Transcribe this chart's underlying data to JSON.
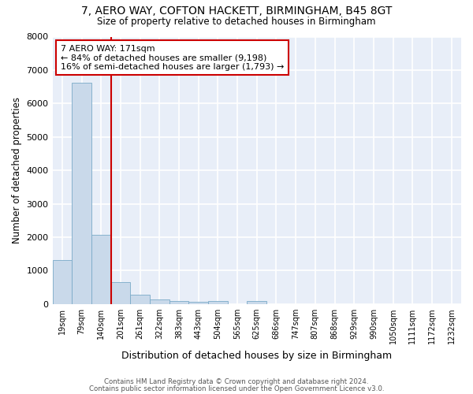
{
  "title_line1": "7, AERO WAY, COFTON HACKETT, BIRMINGHAM, B45 8GT",
  "title_line2": "Size of property relative to detached houses in Birmingham",
  "xlabel": "Distribution of detached houses by size in Birmingham",
  "ylabel": "Number of detached properties",
  "bar_labels": [
    "19sqm",
    "79sqm",
    "140sqm",
    "201sqm",
    "261sqm",
    "322sqm",
    "383sqm",
    "443sqm",
    "504sqm",
    "565sqm",
    "625sqm",
    "686sqm",
    "747sqm",
    "807sqm",
    "868sqm",
    "929sqm",
    "990sqm",
    "1050sqm",
    "1111sqm",
    "1172sqm",
    "1232sqm"
  ],
  "bar_values": [
    1310,
    6620,
    2070,
    660,
    285,
    140,
    90,
    75,
    80,
    0,
    100,
    0,
    0,
    0,
    0,
    0,
    0,
    0,
    0,
    0,
    0
  ],
  "bar_color": "#c9d9ea",
  "bar_edge_color": "#7aaac8",
  "vline_color": "#cc0000",
  "annotation_text": "7 AERO WAY: 171sqm\n← 84% of detached houses are smaller (9,198)\n16% of semi-detached houses are larger (1,793) →",
  "annotation_box_color": "white",
  "annotation_box_edge": "#cc0000",
  "ylim": [
    0,
    8000
  ],
  "yticks": [
    0,
    1000,
    2000,
    3000,
    4000,
    5000,
    6000,
    7000,
    8000
  ],
  "background_color": "#e8eef8",
  "grid_color": "white",
  "footer_line1": "Contains HM Land Registry data © Crown copyright and database right 2024.",
  "footer_line2": "Contains public sector information licensed under the Open Government Licence v3.0."
}
